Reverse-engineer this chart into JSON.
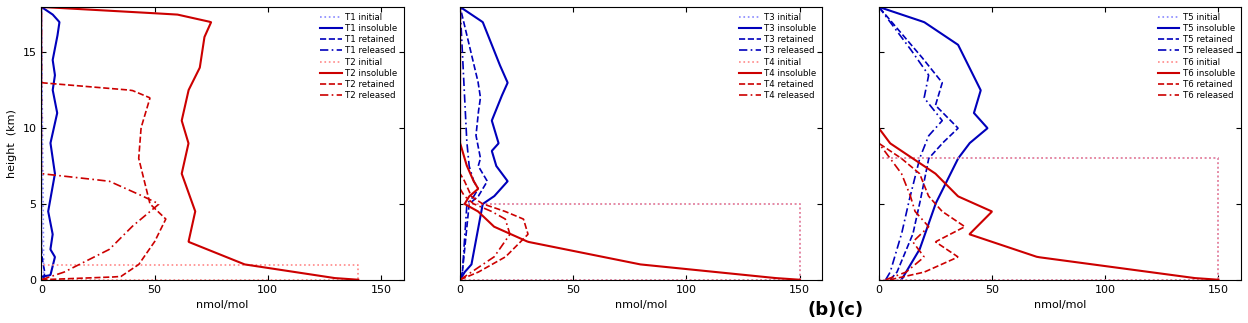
{
  "panel_labels": [
    "T1 initial",
    "T1 insoluble",
    "T1 retained",
    "T1 released",
    "T2 initial",
    "T2 insoluble",
    "T2 retained",
    "T2 released"
  ],
  "panel_b_labels": [
    "T3 initial",
    "T3 insoluble",
    "T3 retained",
    "T3 released",
    "T4 initial",
    "T4 insoluble",
    "T4 retained",
    "T4 released"
  ],
  "panel_c_labels": [
    "T5 initial",
    "T5 insoluble",
    "T5 retained",
    "T5 released",
    "T6 initial",
    "T6 insoluble",
    "T6 retained",
    "T6 released"
  ],
  "xlim": [
    0,
    160
  ],
  "ylim": [
    0,
    18
  ],
  "xlabel": "nmol/mol",
  "ylabel": "height  (km)",
  "xticks": [
    0,
    50,
    100,
    150
  ],
  "yticks": [
    0,
    5,
    10,
    15
  ],
  "blue": "#0000bb",
  "red": "#cc0000",
  "blue_light": "#8888ff",
  "red_light": "#ff8888",
  "lw": 1.2
}
